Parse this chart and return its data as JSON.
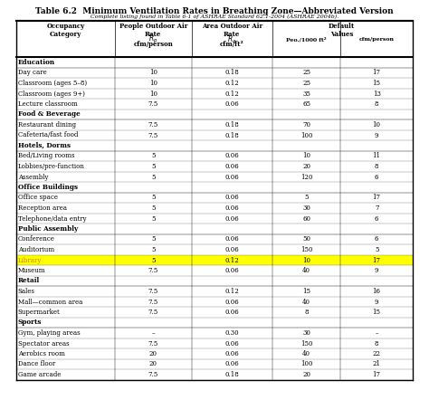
{
  "title": "Table 6.2  Minimum Ventilation Rates in Breathing Zone—Abbreviated Version",
  "subtitle": "Complete listing found in Table 6-1 of ASHRAE Standard 62.1-2004 (ASHRAE 2004b).",
  "col_headers": [
    [
      "Occupancy\nCategory",
      "People Outdoor Air\nRate\nRp\ncfm/person",
      "Area Outdoor Air\nRate\nRa\ncfm/ft²",
      "Default\nValues\nPeo./1000 ft²",
      "Default\nValues\ncfm/person"
    ]
  ],
  "sections": [
    {
      "section": "Education",
      "rows": [
        [
          "Day care",
          "10",
          "0.18",
          "25",
          "17"
        ],
        [
          "Classroom (ages 5–8)",
          "10",
          "0.12",
          "25",
          "15"
        ],
        [
          "Classroom (ages 9+)",
          "10",
          "0.12",
          "35",
          "13"
        ],
        [
          "Lecture classroom",
          "7.5",
          "0.06",
          "65",
          "8"
        ]
      ]
    },
    {
      "section": "Food & Beverage",
      "rows": [
        [
          "Restaurant dining",
          "7.5",
          "0.18",
          "70",
          "10"
        ],
        [
          "Cafeteria/fast food",
          "7.5",
          "0.18",
          "100",
          "9"
        ]
      ]
    },
    {
      "section": "Hotels, Dorms",
      "rows": [
        [
          "Bed/Living rooms",
          "5",
          "0.06",
          "10",
          "11"
        ],
        [
          "Lobbies/pre-function",
          "5",
          "0.06",
          "20",
          "8"
        ],
        [
          "Assembly",
          "5",
          "0.06",
          "120",
          "6"
        ]
      ]
    },
    {
      "section": "Office Buildings",
      "rows": [
        [
          "Office space",
          "5",
          "0.06",
          "5",
          "17"
        ],
        [
          "Reception area",
          "5",
          "0.06",
          "30",
          "7"
        ],
        [
          "Telephone/data entry",
          "5",
          "0.06",
          "60",
          "6"
        ]
      ]
    },
    {
      "section": "Public Assembly",
      "rows": [
        [
          "Conference",
          "5",
          "0.06",
          "50",
          "6"
        ],
        [
          "Auditorium",
          "5",
          "0.06",
          "150",
          "5"
        ],
        [
          "Library",
          "5",
          "0.12",
          "10",
          "17"
        ],
        [
          "Museum",
          "7.5",
          "0.06",
          "40",
          "9"
        ]
      ]
    },
    {
      "section": "Retail",
      "rows": [
        [
          "Sales",
          "7.5",
          "0.12",
          "15",
          "16"
        ],
        [
          "Mall—common area",
          "7.5",
          "0.06",
          "40",
          "9"
        ],
        [
          "Supermarket",
          "7.5",
          "0.06",
          "8",
          "15"
        ]
      ]
    },
    {
      "section": "Sports",
      "rows": [
        [
          "Gym, playing areas",
          "–",
          "0.30",
          "30",
          "–"
        ],
        [
          "Spectator areas",
          "7.5",
          "0.06",
          "150",
          "8"
        ],
        [
          "Aerobics room",
          "20",
          "0.06",
          "40",
          "22"
        ],
        [
          "Dance floor",
          "20",
          "0.06",
          "100",
          "21"
        ],
        [
          "Game arcade",
          "7.5",
          "0.18",
          "20",
          "17"
        ]
      ]
    }
  ],
  "library_highlight": "#FFFF00",
  "bg_color": "#FFFFFF",
  "text_color": "#000000",
  "header_bg": "#E8E8E8"
}
